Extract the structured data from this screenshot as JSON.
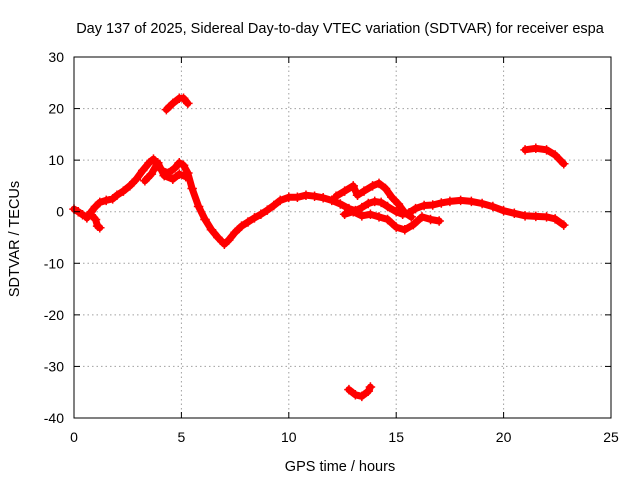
{
  "chart_data": {
    "type": "scatter",
    "title": "Day 137 of 2025, Sidereal Day-to-day VTEC variation (SDTVAR) for receiver espa",
    "xlabel": "GPS time / hours",
    "ylabel": "SDTVAR / TECUs",
    "xlim": [
      0,
      25
    ],
    "ylim": [
      -40,
      30
    ],
    "x_ticks": [
      0,
      5,
      10,
      15,
      20,
      25
    ],
    "y_ticks": [
      -40,
      -30,
      -20,
      -10,
      0,
      10,
      20,
      30
    ],
    "grid": true,
    "marker": "plus",
    "color": "#ff0000",
    "series": [
      {
        "name": "arc-1",
        "points": [
          [
            0.0,
            0.5
          ],
          [
            0.2,
            0.0
          ],
          [
            0.4,
            -0.6
          ],
          [
            0.6,
            -1.0
          ],
          [
            0.8,
            -0.6
          ],
          [
            1.0,
            -1.5
          ],
          [
            1.1,
            -2.8
          ],
          [
            1.2,
            -3.1
          ]
        ]
      },
      {
        "name": "arc-2",
        "points": [
          [
            0.6,
            -1.2
          ],
          [
            0.8,
            0.0
          ],
          [
            1.0,
            1.0
          ],
          [
            1.2,
            1.8
          ],
          [
            1.5,
            2.2
          ],
          [
            1.8,
            2.5
          ],
          [
            2.0,
            3.2
          ],
          [
            2.3,
            4.0
          ],
          [
            2.6,
            5.0
          ],
          [
            2.9,
            6.3
          ],
          [
            3.2,
            8.0
          ],
          [
            3.5,
            9.5
          ],
          [
            3.7,
            10.2
          ],
          [
            3.9,
            9.0
          ],
          [
            4.1,
            8.0
          ],
          [
            4.4,
            7.5
          ],
          [
            4.7,
            8.5
          ],
          [
            4.9,
            9.5
          ],
          [
            5.1,
            9.0
          ],
          [
            5.3,
            7.5
          ],
          [
            5.5,
            4.5
          ],
          [
            5.8,
            1.0
          ],
          [
            6.1,
            -1.5
          ],
          [
            6.4,
            -3.5
          ],
          [
            6.7,
            -5.0
          ],
          [
            7.0,
            -6.3
          ],
          [
            7.2,
            -5.5
          ],
          [
            7.5,
            -4.0
          ],
          [
            7.8,
            -2.8
          ],
          [
            8.1,
            -2.0
          ],
          [
            8.4,
            -1.2
          ],
          [
            8.7,
            -0.5
          ],
          [
            9.0,
            0.3
          ],
          [
            9.3,
            1.2
          ],
          [
            9.6,
            2.2
          ],
          [
            10.0,
            2.8
          ],
          [
            10.4,
            2.8
          ],
          [
            10.8,
            3.2
          ],
          [
            11.2,
            3.0
          ],
          [
            11.6,
            2.7
          ],
          [
            12.0,
            2.2
          ],
          [
            12.4,
            1.5
          ],
          [
            12.8,
            0.6
          ],
          [
            13.1,
            0.2
          ],
          [
            13.4,
            0.8
          ],
          [
            13.7,
            1.6
          ],
          [
            14.0,
            2.0
          ],
          [
            14.3,
            1.8
          ],
          [
            14.6,
            1.0
          ],
          [
            15.0,
            0.0
          ],
          [
            15.3,
            -0.5
          ],
          [
            15.6,
            -0.2
          ],
          [
            15.9,
            0.6
          ],
          [
            16.3,
            1.2
          ],
          [
            16.7,
            1.3
          ],
          [
            17.1,
            1.7
          ],
          [
            17.5,
            2.0
          ],
          [
            18.0,
            2.2
          ],
          [
            18.5,
            2.0
          ],
          [
            19.0,
            1.6
          ],
          [
            19.5,
            1.0
          ],
          [
            20.0,
            0.2
          ],
          [
            20.5,
            -0.3
          ],
          [
            21.0,
            -0.8
          ],
          [
            21.5,
            -0.9
          ],
          [
            22.0,
            -1.0
          ],
          [
            22.4,
            -1.4
          ],
          [
            22.8,
            -2.6
          ]
        ]
      },
      {
        "name": "arc-3",
        "points": [
          [
            3.3,
            6.0
          ],
          [
            3.6,
            7.3
          ],
          [
            3.9,
            9.5
          ],
          [
            4.2,
            7.0
          ],
          [
            4.6,
            6.3
          ],
          [
            4.9,
            7.3
          ],
          [
            5.2,
            6.8
          ]
        ]
      },
      {
        "name": "arc-4",
        "points": [
          [
            12.2,
            3.0
          ],
          [
            12.6,
            4.0
          ],
          [
            13.0,
            5.0
          ],
          [
            13.2,
            3.2
          ],
          [
            13.5,
            4.0
          ],
          [
            13.9,
            5.0
          ],
          [
            14.2,
            5.5
          ],
          [
            14.5,
            4.5
          ],
          [
            14.8,
            2.8
          ],
          [
            15.1,
            1.5
          ],
          [
            15.4,
            -0.2
          ],
          [
            15.7,
            -1.0
          ]
        ]
      },
      {
        "name": "arc-5",
        "points": [
          [
            12.6,
            -0.5
          ],
          [
            13.0,
            0.0
          ],
          [
            13.4,
            -0.8
          ],
          [
            13.8,
            -0.5
          ],
          [
            14.2,
            -1.0
          ],
          [
            14.6,
            -1.5
          ],
          [
            15.0,
            -3.0
          ],
          [
            15.4,
            -3.5
          ],
          [
            15.8,
            -2.5
          ],
          [
            16.2,
            -1.0
          ],
          [
            16.6,
            -1.5
          ],
          [
            17.0,
            -1.8
          ]
        ]
      },
      {
        "name": "arc-6",
        "points": [
          [
            4.3,
            19.8
          ],
          [
            4.6,
            21.0
          ],
          [
            4.9,
            22.0
          ],
          [
            5.1,
            22.0
          ],
          [
            5.3,
            21.0
          ]
        ]
      },
      {
        "name": "arc-7",
        "points": [
          [
            21.0,
            12.0
          ],
          [
            21.5,
            12.3
          ],
          [
            22.0,
            12.0
          ],
          [
            22.4,
            11.0
          ],
          [
            22.8,
            9.3
          ]
        ]
      },
      {
        "name": "arc-8",
        "points": [
          [
            12.8,
            -34.5
          ],
          [
            13.1,
            -35.5
          ],
          [
            13.4,
            -35.8
          ],
          [
            13.7,
            -34.8
          ],
          [
            13.8,
            -34.0
          ]
        ]
      }
    ]
  }
}
